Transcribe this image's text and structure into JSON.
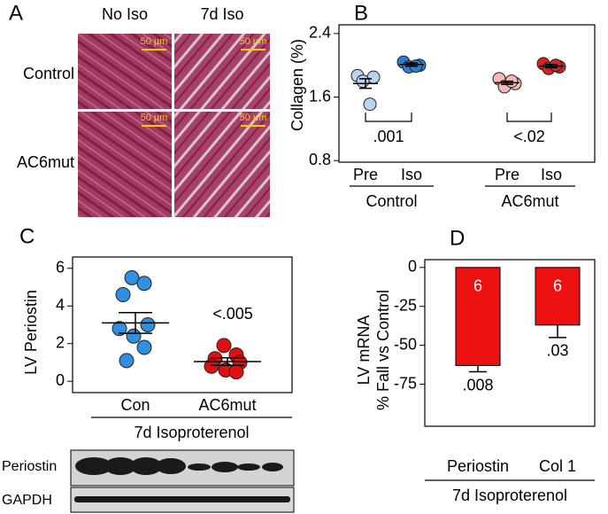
{
  "panels": {
    "A": {
      "panel": "A",
      "columns": [
        "No Iso",
        "7d Iso"
      ],
      "rows": [
        "Control",
        "AC6mut"
      ],
      "scale_bar": "50 µm"
    },
    "blot": {
      "rows": [
        "Periostin",
        "GAPDH"
      ]
    }
  },
  "chart_data": [
    {
      "panel": "B",
      "type": "scatter",
      "ylabel": "Collagen (%)",
      "categories": [
        "Pre",
        "Iso",
        "Pre",
        "Iso"
      ],
      "groups": [
        "Control",
        "AC6mut"
      ],
      "ylim": [
        0.78,
        2.51
      ],
      "yticks": [
        0.8,
        1.6,
        2.4
      ],
      "series": [
        {
          "color": "#b9d3ee",
          "values": [
            1.87,
            1.85,
            1.8,
            1.51
          ],
          "mean": 1.77,
          "error": 0.06
        },
        {
          "color": "#2a7fd4",
          "values": [
            2.04,
            2.0,
            1.98,
            1.99
          ],
          "mean": 2.01,
          "error": 0.02
        },
        {
          "color": "#f4b8b8",
          "values": [
            1.83,
            1.77,
            1.73,
            1.8
          ],
          "mean": 1.78,
          "error": 0.02
        },
        {
          "color": "#e02020",
          "values": [
            2.02,
            1.98,
            1.96,
            2.0
          ],
          "mean": 1.99,
          "error": 0.02
        }
      ],
      "annotations": [
        ".001",
        "<.02"
      ]
    },
    {
      "panel": "C",
      "type": "scatter",
      "ylabel": "LV Periostin",
      "categories": [
        "Con",
        "AC6mut"
      ],
      "groups": [
        "7d Isoproterenol"
      ],
      "ylim": [
        -0.6,
        6.6
      ],
      "yticks": [
        0,
        2,
        4,
        6
      ],
      "series": [
        {
          "color": "#2f8fe0",
          "values": [
            5.5,
            5.2,
            4.6,
            3.0,
            2.8,
            2.4,
            1.8,
            1.1
          ],
          "mean": 3.1,
          "error": 0.55
        },
        {
          "color": "#e01010",
          "values": [
            1.9,
            1.4,
            1.2,
            1.0,
            0.8,
            0.6,
            0.5
          ],
          "mean": 1.05,
          "error": 0.2
        }
      ],
      "annotations": [
        "<.005"
      ]
    },
    {
      "panel": "D",
      "type": "bar",
      "ylabel": [
        "LV mRNA",
        "% Fall vs Control"
      ],
      "categories": [
        "Periostin",
        "Col 1"
      ],
      "groups": [
        "7d Isoproterenol"
      ],
      "values": [
        -63,
        -37
      ],
      "errors": [
        4,
        8
      ],
      "color": "#ee1111",
      "n_labels": [
        "6",
        "6"
      ],
      "annotations": [
        ".008",
        ".03"
      ],
      "ylim": [
        -102,
        5
      ],
      "yticks": [
        0,
        -25,
        -50,
        -75
      ]
    }
  ]
}
